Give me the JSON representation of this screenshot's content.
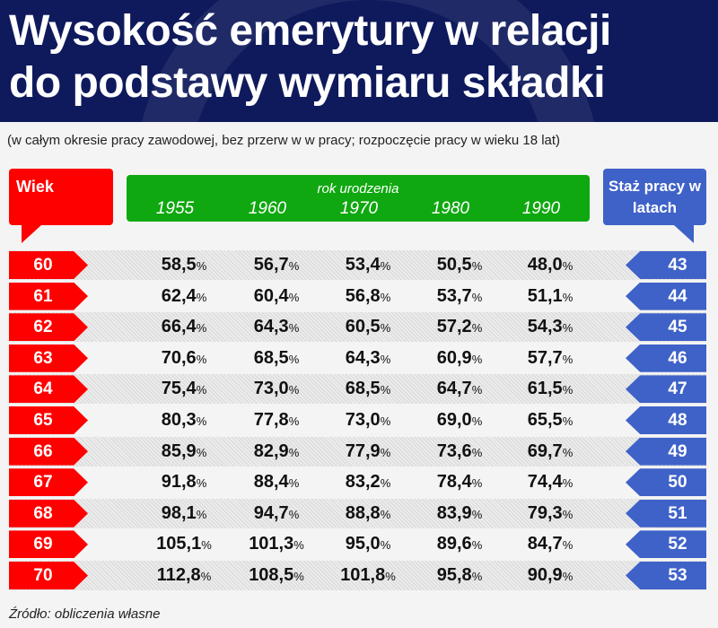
{
  "title_line1": "Wysokość emerytury w relacji",
  "title_line2": "do podstawy wymiaru składki",
  "subtitle": "(w całym okresie pracy zawodowej, bez przerw w w pracy; rozpoczęcie pracy w wieku 18 lat)",
  "source": "Źródło: obliczenia własne",
  "colors": {
    "header": "#0f1a5c",
    "age": "#ff0000",
    "birth_year": "#10a810",
    "tenure": "#3f62c8"
  },
  "chart_data": {
    "type": "table",
    "row_header": "Wiek",
    "column_group_label": "rok urodzenia",
    "right_header": "Staż pracy w latach",
    "columns": [
      "1955",
      "1960",
      "1970",
      "1980",
      "1990"
    ],
    "unit": "%",
    "rows": [
      {
        "age": "60",
        "tenure": "43",
        "values": [
          "58,5",
          "56,7",
          "53,4",
          "50,5",
          "48,0"
        ]
      },
      {
        "age": "61",
        "tenure": "44",
        "values": [
          "62,4",
          "60,4",
          "56,8",
          "53,7",
          "51,1"
        ]
      },
      {
        "age": "62",
        "tenure": "45",
        "values": [
          "66,4",
          "64,3",
          "60,5",
          "57,2",
          "54,3"
        ]
      },
      {
        "age": "63",
        "tenure": "46",
        "values": [
          "70,6",
          "68,5",
          "64,3",
          "60,9",
          "57,7"
        ]
      },
      {
        "age": "64",
        "tenure": "47",
        "values": [
          "75,4",
          "73,0",
          "68,5",
          "64,7",
          "61,5"
        ]
      },
      {
        "age": "65",
        "tenure": "48",
        "values": [
          "80,3",
          "77,8",
          "73,0",
          "69,0",
          "65,5"
        ]
      },
      {
        "age": "66",
        "tenure": "49",
        "values": [
          "85,9",
          "82,9",
          "77,9",
          "73,6",
          "69,7"
        ]
      },
      {
        "age": "67",
        "tenure": "50",
        "values": [
          "91,8",
          "88,4",
          "83,2",
          "78,4",
          "74,4"
        ]
      },
      {
        "age": "68",
        "tenure": "51",
        "values": [
          "98,1",
          "94,7",
          "88,8",
          "83,9",
          "79,3"
        ]
      },
      {
        "age": "69",
        "tenure": "52",
        "values": [
          "105,1",
          "101,3",
          "95,0",
          "89,6",
          "84,7"
        ]
      },
      {
        "age": "70",
        "tenure": "53",
        "values": [
          "112,8",
          "108,5",
          "101,8",
          "95,8",
          "90,9"
        ]
      }
    ]
  }
}
